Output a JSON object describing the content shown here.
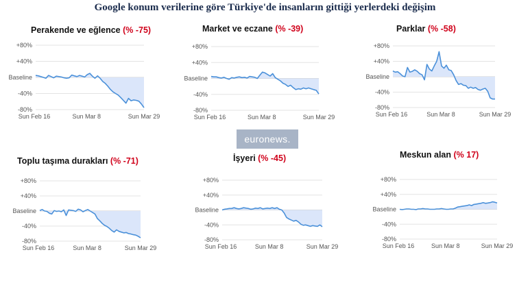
{
  "title": "Google konum verilerine göre Türkiye'de insanların gittiği yerlerdeki değişim",
  "logo_text": "euronews.",
  "colors": {
    "line": "#4a90d9",
    "fill": "#dbe6fa",
    "grid": "#e3e3e3",
    "pct": "#d0021b"
  },
  "chart_data": [
    {
      "type": "area",
      "title": "Perakende ve eğlence",
      "pct_label": "(% -75)",
      "yticks": [
        "+80%",
        "+40%",
        "Baseline",
        "-40%",
        "-80%"
      ],
      "ylim": [
        -80,
        80
      ],
      "xticks": [
        "Sun Feb 16",
        "Sun Mar 8",
        "Sun Mar 29"
      ],
      "x_range": [
        "Feb 15",
        "Mar 29"
      ],
      "values": [
        5,
        4,
        2,
        0,
        -2,
        5,
        2,
        -1,
        3,
        2,
        1,
        -1,
        -2,
        -1,
        6,
        4,
        2,
        5,
        3,
        1,
        7,
        10,
        3,
        -2,
        4,
        -2,
        -10,
        -15,
        -22,
        -30,
        -36,
        -40,
        -44,
        -50,
        -57,
        -64,
        -52,
        -58,
        -56,
        -57,
        -59,
        -66,
        -75
      ]
    },
    {
      "type": "area",
      "title": "Market ve eczane",
      "pct_label": "(% -39)",
      "yticks": [
        "+80%",
        "+40%",
        "Baseline",
        "-40%",
        "-80%"
      ],
      "ylim": [
        -80,
        80
      ],
      "xticks": [
        "Sun Feb 16",
        "Sun Mar 8",
        "Sun Mar 29"
      ],
      "x_range": [
        "Feb 15",
        "Mar 29"
      ],
      "values": [
        5,
        4,
        4,
        2,
        1,
        3,
        0,
        -2,
        2,
        1,
        3,
        4,
        2,
        3,
        1,
        5,
        4,
        3,
        0,
        8,
        16,
        14,
        10,
        6,
        12,
        2,
        -2,
        -6,
        -12,
        -15,
        -20,
        -17,
        -23,
        -28,
        -26,
        -27,
        -24,
        -26,
        -24,
        -26,
        -28,
        -30,
        -39
      ]
    },
    {
      "type": "area",
      "title": "Parklar",
      "pct_label": "(% -58)",
      "yticks": [
        "+80%",
        "+40%",
        "Baseline",
        "-40%",
        "-80%"
      ],
      "ylim": [
        -80,
        80
      ],
      "xticks": [
        "Sun Feb 16",
        "Sun Mar 8",
        "Sun Mar 29"
      ],
      "x_range": [
        "Feb 15",
        "Mar 29"
      ],
      "values": [
        15,
        12,
        13,
        8,
        2,
        0,
        24,
        12,
        14,
        18,
        14,
        8,
        5,
        -8,
        32,
        20,
        15,
        28,
        40,
        65,
        28,
        22,
        30,
        18,
        16,
        5,
        -10,
        -20,
        -18,
        -22,
        -23,
        -30,
        -27,
        -30,
        -28,
        -33,
        -35,
        -32,
        -30,
        -38,
        -55,
        -58,
        -58
      ]
    },
    {
      "type": "area",
      "title": "Toplu taşıma durakları",
      "pct_label": "(% -71)",
      "yticks": [
        "+80%",
        "+40%",
        "Baseline",
        "-40%",
        "-80%"
      ],
      "ylim": [
        -80,
        80
      ],
      "xticks": [
        "Sun Feb 16",
        "Sun Mar 8",
        "Sun Mar 29"
      ],
      "x_range": [
        "Feb 15",
        "Mar 29"
      ],
      "values": [
        1,
        4,
        0,
        -1,
        -6,
        -8,
        1,
        -1,
        0,
        -2,
        3,
        -12,
        3,
        2,
        1,
        -1,
        5,
        3,
        -2,
        1,
        4,
        0,
        -4,
        -8,
        -20,
        -26,
        -33,
        -38,
        -41,
        -46,
        -52,
        -56,
        -50,
        -54,
        -56,
        -58,
        -57,
        -60,
        -61,
        -63,
        -64,
        -67,
        -71
      ]
    },
    {
      "type": "area",
      "title": "İşyeri",
      "pct_label": "(% -45)",
      "yticks": [
        "+80%",
        "+40%",
        "Baseline",
        "-40%",
        "-80%"
      ],
      "ylim": [
        -80,
        80
      ],
      "xticks": [
        "Sun Feb 16",
        "Sun Mar 8",
        "Sun Mar 29"
      ],
      "x_range": [
        "Feb 15",
        "Mar 29"
      ],
      "values": [
        0,
        2,
        3,
        4,
        4,
        6,
        4,
        3,
        4,
        6,
        5,
        4,
        2,
        3,
        5,
        4,
        6,
        3,
        4,
        5,
        4,
        6,
        4,
        6,
        2,
        0,
        -8,
        -20,
        -24,
        -27,
        -30,
        -28,
        -32,
        -38,
        -41,
        -40,
        -42,
        -44,
        -42,
        -43,
        -44,
        -40,
        -45
      ]
    },
    {
      "type": "area",
      "title": "Meskun alan",
      "pct_label": "(% 17)",
      "yticks": [
        "+80%",
        "+40%",
        "Baseline",
        "-40%",
        "-80%"
      ],
      "ylim": [
        -80,
        80
      ],
      "xticks": [
        "Sun Feb 16",
        "Sun Mar 8",
        "Sun Mar 29"
      ],
      "x_range": [
        "Feb 15",
        "Mar 29"
      ],
      "values": [
        0,
        -1,
        0,
        1,
        1,
        0,
        0,
        -1,
        1,
        1,
        2,
        1,
        1,
        0,
        0,
        0,
        1,
        1,
        2,
        1,
        0,
        0,
        1,
        1,
        3,
        6,
        7,
        8,
        9,
        10,
        12,
        10,
        13,
        14,
        15,
        16,
        18,
        16,
        17,
        18,
        20,
        19,
        17
      ]
    }
  ]
}
